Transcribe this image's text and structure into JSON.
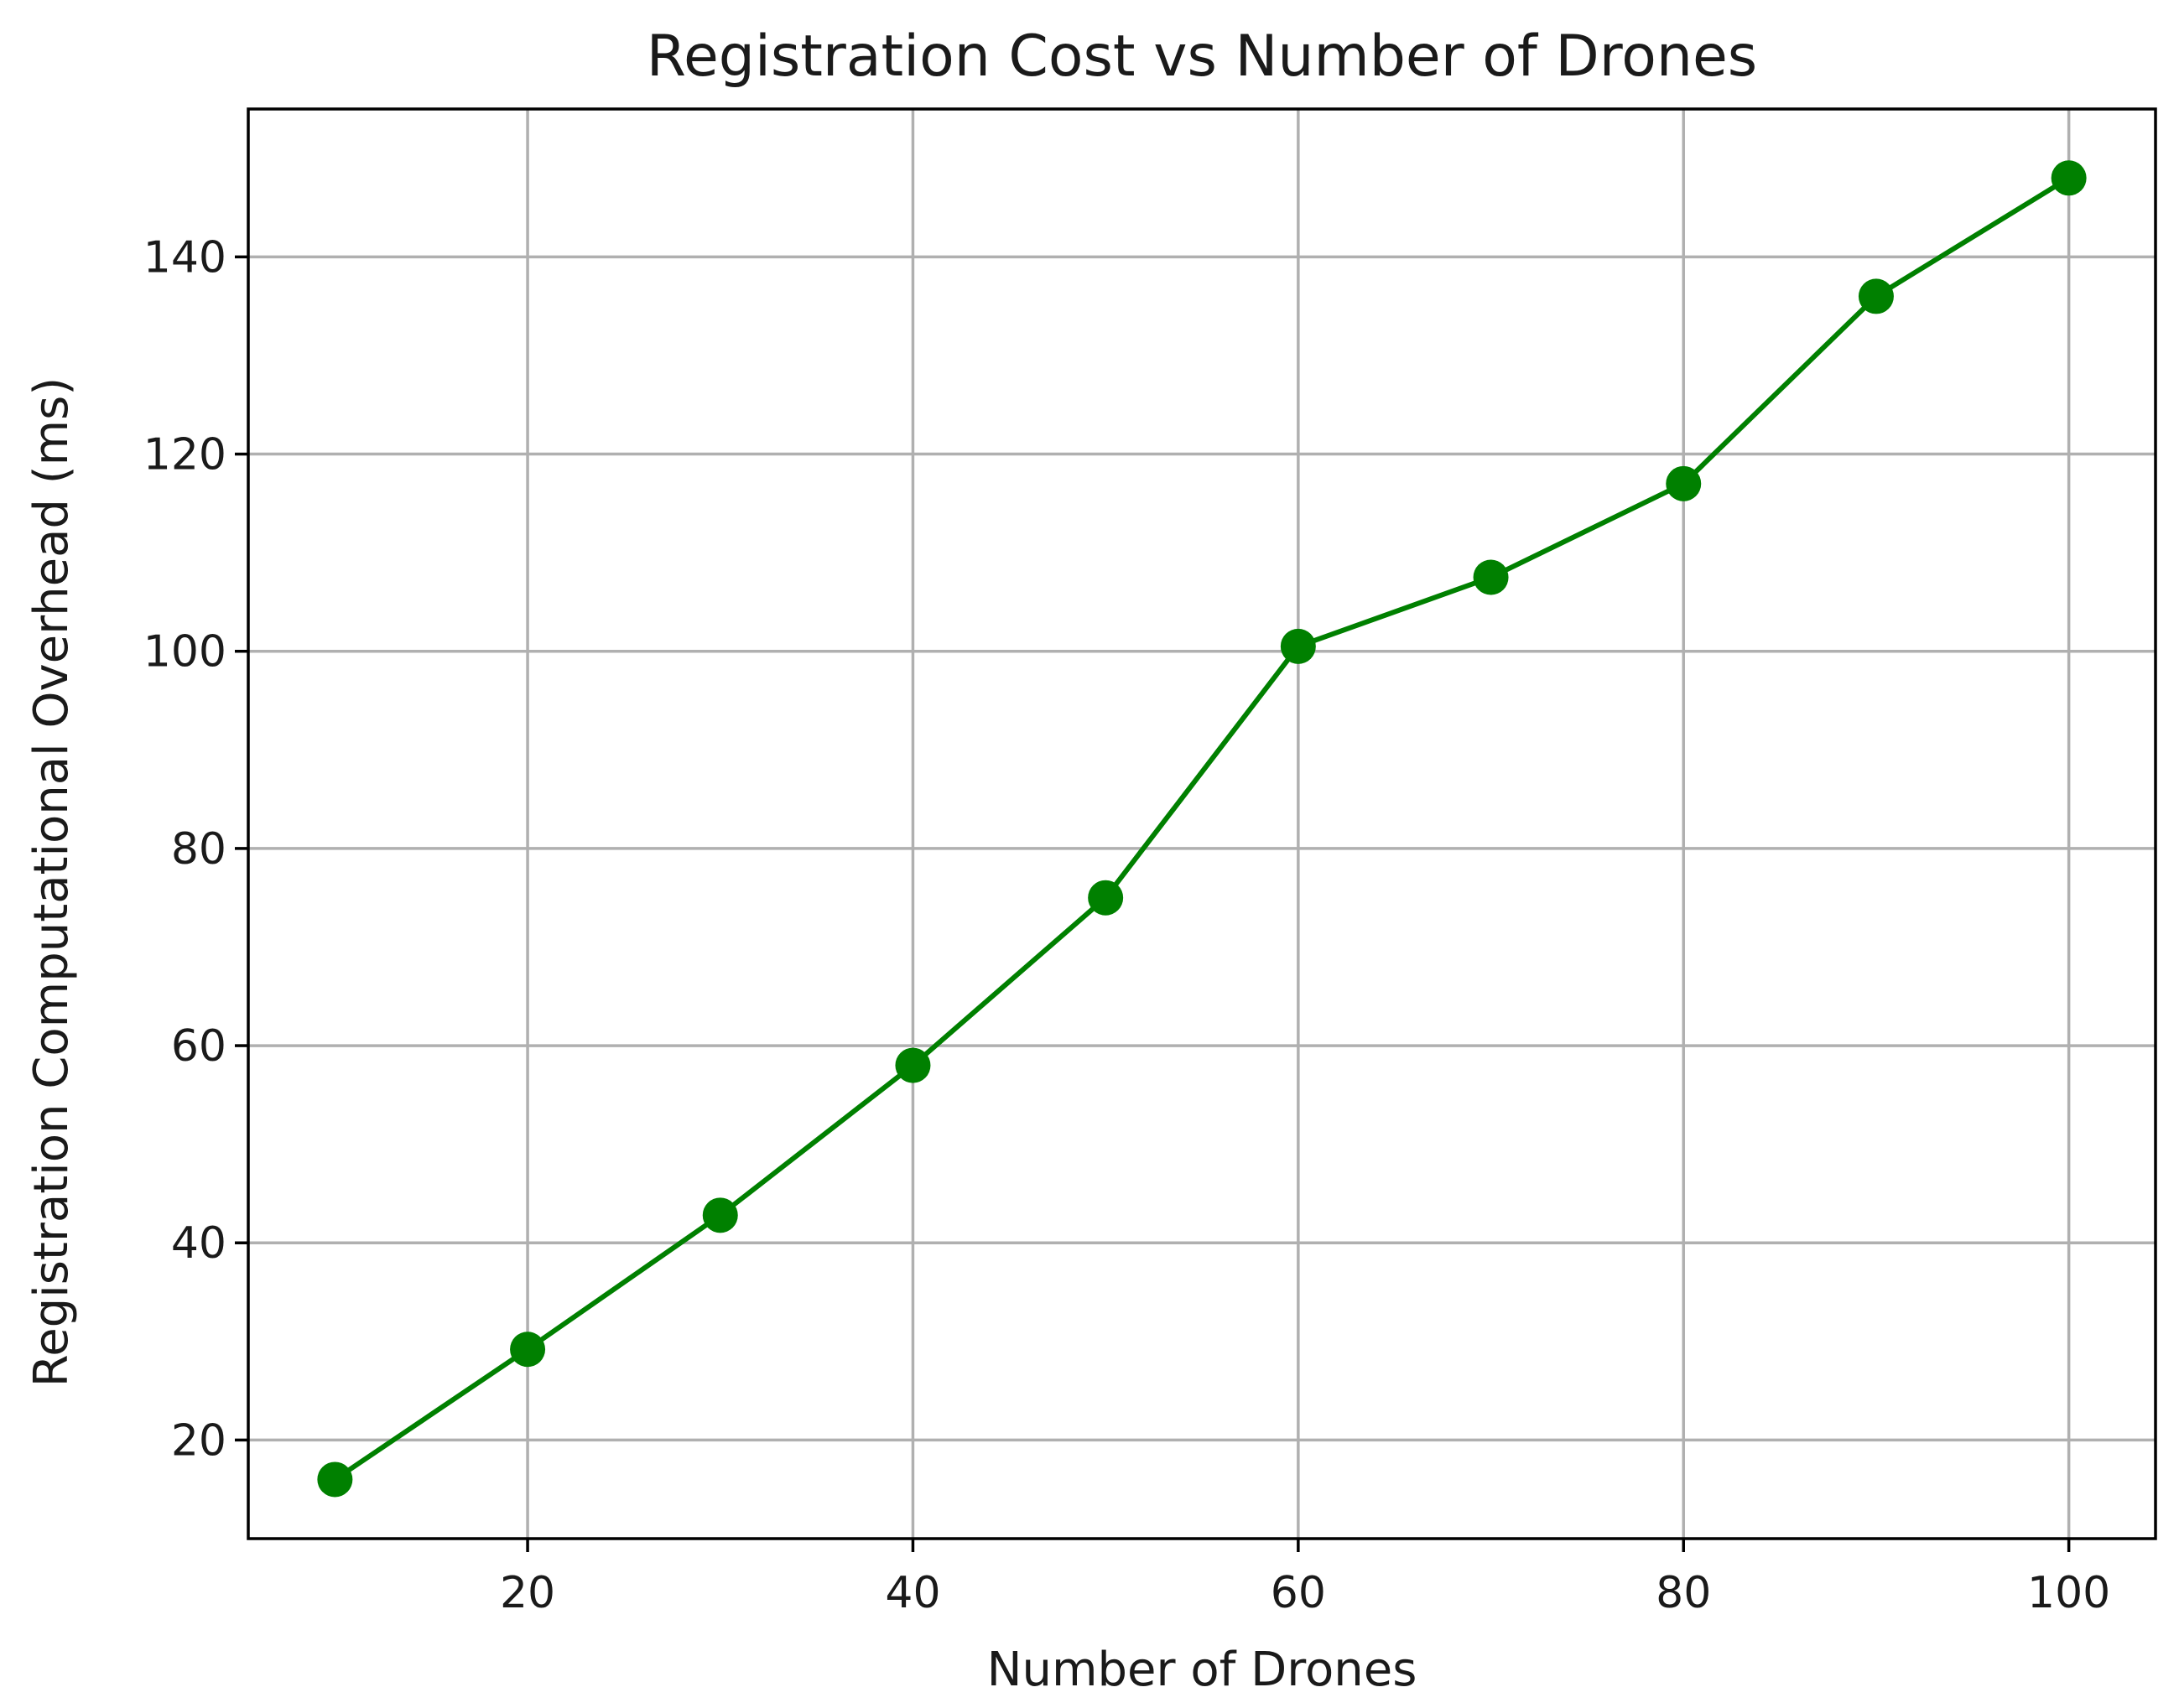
{
  "chart_data": {
    "type": "line",
    "title": "Registration Cost vs Number of Drones",
    "xlabel": "Number of Drones",
    "ylabel": "Registration Computational Overhead (ms)",
    "xlim": [
      5.5,
      104.5
    ],
    "ylim": [
      10,
      155
    ],
    "x_ticks": [
      20,
      40,
      60,
      80,
      100
    ],
    "y_ticks": [
      20,
      40,
      60,
      80,
      100,
      120,
      140
    ],
    "grid": true,
    "series": [
      {
        "color": "#008000",
        "marker": "circle",
        "x": [
          10,
          20,
          30,
          40,
          50,
          60,
          70,
          80,
          90,
          100
        ],
        "y": [
          16,
          29.2,
          42.8,
          58,
          75,
          100.5,
          107.5,
          117,
          136,
          148
        ]
      }
    ]
  }
}
